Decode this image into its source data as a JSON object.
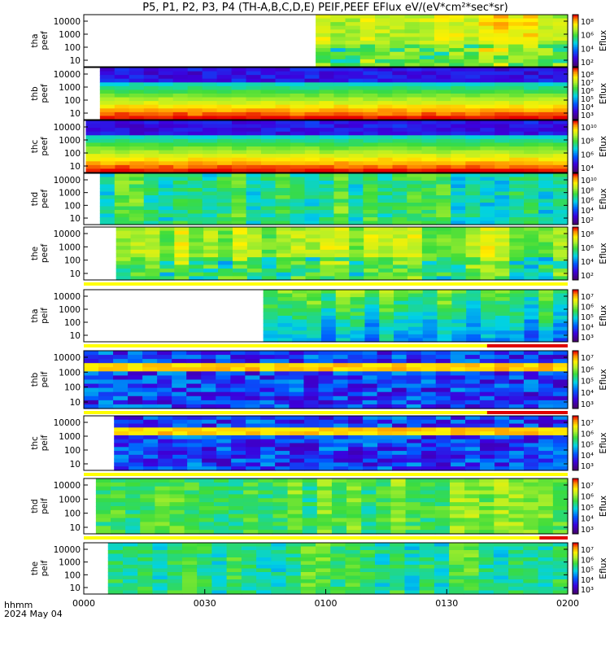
{
  "title": "P5, P1, P2, P3, P4 (TH-A,B,C,D,E) PEIF,PEEF EFlux eV/(eV*cm²*sec*sr)",
  "time_axis": {
    "label_line1": "hhmm",
    "label_line2": "2024 May 04",
    "ticks": [
      "0000",
      "0030",
      "0100",
      "0130",
      "0200"
    ],
    "range_minutes": [
      0,
      120
    ]
  },
  "colorbar_unit": "Eflux",
  "chart_data": [
    {
      "type": "heatmap",
      "name": "tha peef",
      "probe": "tha",
      "species": "peef",
      "ylabel": [
        "tha",
        "peef"
      ],
      "yticks": [
        "10000",
        "1000",
        "100",
        "10"
      ],
      "ylog": true,
      "colorbar_ticks": [
        "10⁸",
        "10⁶",
        "10⁴",
        "10²"
      ],
      "data_start_min": 57.5
    },
    {
      "type": "heatmap",
      "name": "thb peef",
      "probe": "thb",
      "species": "peef",
      "ylabel": [
        "thb",
        "peef"
      ],
      "yticks": [
        "10000",
        "1000",
        "100",
        "10"
      ],
      "ylog": true,
      "colorbar_ticks": [
        "10⁸",
        "10⁷",
        "10⁶",
        "10⁵",
        "10⁴",
        "10³"
      ],
      "data_start_min": 4.0
    },
    {
      "type": "heatmap",
      "name": "thc peef",
      "probe": "thc",
      "species": "peef",
      "ylabel": [
        "thc",
        "peef"
      ],
      "yticks": [
        "10000",
        "1000",
        "100",
        "10"
      ],
      "ylog": true,
      "colorbar_ticks": [
        "10¹⁰",
        "10⁸",
        "10⁶",
        "10⁴"
      ],
      "data_start_min": 0.5
    },
    {
      "type": "heatmap",
      "name": "thd peef",
      "probe": "thd",
      "species": "peef",
      "ylabel": [
        "thd",
        "peef"
      ],
      "yticks": [
        "10000",
        "1000",
        "100",
        "10"
      ],
      "ylog": true,
      "colorbar_ticks": [
        "10¹⁰",
        "10⁸",
        "10⁶",
        "10⁴",
        "10²"
      ],
      "data_start_min": 4.0
    },
    {
      "type": "heatmap",
      "name": "the peef",
      "probe": "the",
      "species": "peef",
      "ylabel": [
        "the",
        "peef"
      ],
      "yticks": [
        "10000",
        "1000",
        "100",
        "10"
      ],
      "ylog": true,
      "colorbar_ticks": [
        "10⁸",
        "10⁶",
        "10⁴",
        "10²"
      ],
      "data_start_min": 8.0
    },
    {
      "type": "heatmap",
      "name": "tha peif",
      "probe": "tha",
      "species": "peif",
      "ylabel": [
        "tha",
        "peif"
      ],
      "yticks": [
        "10000",
        "1000",
        "100",
        "10"
      ],
      "ylog": true,
      "colorbar_ticks": [
        "10⁷",
        "10⁶",
        "10⁵",
        "10⁴",
        "10³"
      ],
      "data_start_min": 44.5
    },
    {
      "type": "heatmap",
      "name": "thb peif",
      "probe": "thb",
      "species": "peif",
      "ylabel": [
        "thb",
        "peif"
      ],
      "yticks": [
        "10000",
        "1000",
        "100",
        "10"
      ],
      "ylog": true,
      "colorbar_ticks": [
        "10⁷",
        "10⁶",
        "10⁵",
        "10⁴",
        "10³"
      ],
      "data_start_min": 0.0
    },
    {
      "type": "heatmap",
      "name": "thc peif",
      "probe": "thc",
      "species": "peif",
      "ylabel": [
        "thc",
        "peif"
      ],
      "yticks": [
        "10000",
        "1000",
        "100",
        "10"
      ],
      "ylog": true,
      "colorbar_ticks": [
        "10⁷",
        "10⁶",
        "10⁵",
        "10⁴",
        "10³"
      ],
      "data_start_min": 7.5
    },
    {
      "type": "heatmap",
      "name": "thd peif",
      "probe": "thd",
      "species": "peif",
      "ylabel": [
        "thd",
        "peif"
      ],
      "yticks": [
        "10000",
        "1000",
        "100",
        "10"
      ],
      "ylog": true,
      "colorbar_ticks": [
        "10⁷",
        "10⁶",
        "10⁵",
        "10⁴",
        "10³"
      ],
      "data_start_min": 3.0
    },
    {
      "type": "heatmap",
      "name": "the peif",
      "probe": "the",
      "species": "peif",
      "ylabel": [
        "the",
        "peif"
      ],
      "yticks": [
        "10000",
        "1000",
        "100",
        "10"
      ],
      "ylog": true,
      "colorbar_ticks": [
        "10⁷",
        "10⁶",
        "10⁵",
        "10⁴",
        "10³"
      ],
      "data_start_min": 6.0
    }
  ]
}
